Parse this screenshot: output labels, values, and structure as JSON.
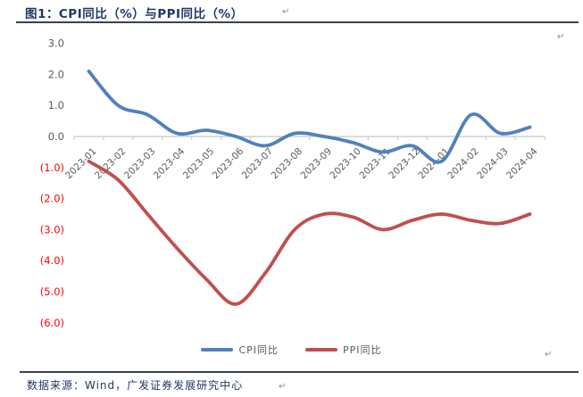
{
  "title": {
    "text": "图1：CPI同比（%）与PPI同比（%）"
  },
  "footer": {
    "text": "数据来源：Wind，广发证券发展研究中心"
  },
  "return_mark": "↵",
  "colors": {
    "cpi_line": "#4F81BD",
    "ppi_line": "#C0504D",
    "axis": "#C6C6C6",
    "tick_label_positive": "#595959",
    "tick_label_negative": "#FF0000",
    "x_label": "#595959",
    "title_text": "#203864"
  },
  "chart_data": {
    "type": "line",
    "title": "CPI同比（%）与PPI同比（%）",
    "categories": [
      "2023-01",
      "2023-02",
      "2023-03",
      "2023-04",
      "2023-05",
      "2023-06",
      "2023-07",
      "2023-08",
      "2023-09",
      "2023-10",
      "2023-11",
      "2023-12",
      "2024-01",
      "2024-02",
      "2024-03",
      "2024-04"
    ],
    "series": [
      {
        "name": "CPI同比",
        "color": "#4F81BD",
        "values": [
          2.1,
          1.0,
          0.7,
          0.1,
          0.2,
          0.0,
          -0.3,
          0.1,
          0.0,
          -0.2,
          -0.5,
          -0.3,
          -0.8,
          0.7,
          0.1,
          0.3
        ]
      },
      {
        "name": "PPI同比",
        "color": "#C0504D",
        "values": [
          -0.8,
          -1.4,
          -2.5,
          -3.6,
          -4.6,
          -5.4,
          -4.4,
          -3.0,
          -2.5,
          -2.6,
          -3.0,
          -2.7,
          -2.5,
          -2.7,
          -2.8,
          -2.5
        ]
      }
    ],
    "xlabel": "",
    "ylabel": "",
    "ylim": [
      -6.0,
      3.0
    ],
    "yticks": [
      3,
      2,
      1,
      0,
      -1,
      -2,
      -3,
      -4,
      -5,
      -6
    ],
    "ytick_labels": [
      "3.0",
      "2.0",
      "1.0",
      "0.0",
      "(1.0)",
      "(2.0)",
      "(3.0)",
      "(4.0)",
      "(5.0)",
      "(6.0)"
    ],
    "grid": false,
    "smooth": true,
    "legend_position": "bottom"
  }
}
